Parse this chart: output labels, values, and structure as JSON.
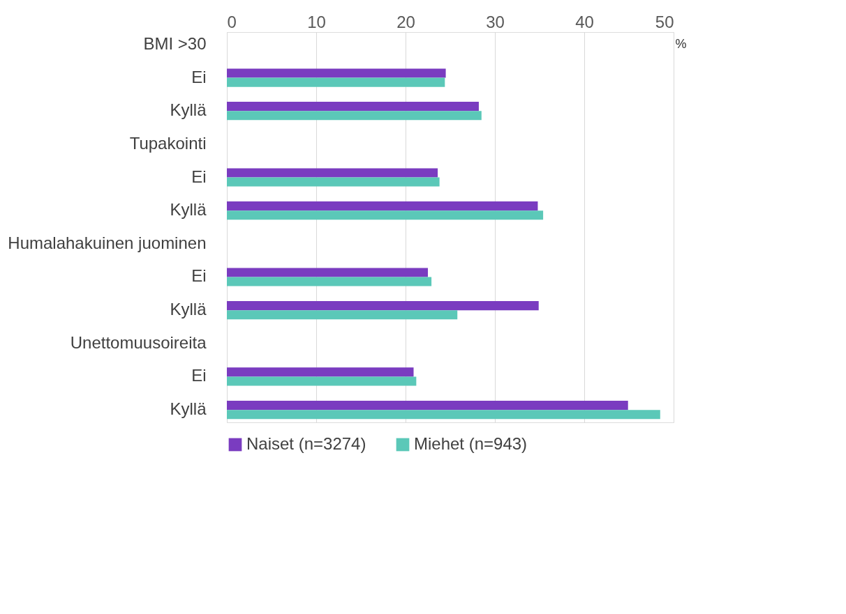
{
  "chart_data": {
    "type": "bar",
    "orientation": "horizontal",
    "xlabel": "%",
    "categories": [
      "BMI >30",
      "Ei",
      "Kyllä",
      "Tupakointi",
      "Ei",
      "Kyllä",
      "Humalahakuinen juominen",
      "Ei",
      "Kyllä",
      "Unettomuusoireita",
      "Ei",
      "Kyllä"
    ],
    "series": [
      {
        "name": "Naiset (n=3274)",
        "color": "#7a3cc0",
        "values": [
          null,
          24.5,
          28.2,
          null,
          23.6,
          34.8,
          null,
          22.5,
          34.9,
          null,
          20.9,
          44.9
        ]
      },
      {
        "name": "Miehet (n=943)",
        "color": "#5bc8b8",
        "values": [
          null,
          24.4,
          28.5,
          null,
          23.8,
          35.4,
          null,
          22.9,
          25.8,
          null,
          21.2,
          48.5
        ]
      }
    ],
    "xlim": [
      0,
      50
    ],
    "xticks": [
      0,
      10,
      20,
      30,
      40,
      50
    ],
    "grid": "x",
    "legend": "bottom"
  }
}
